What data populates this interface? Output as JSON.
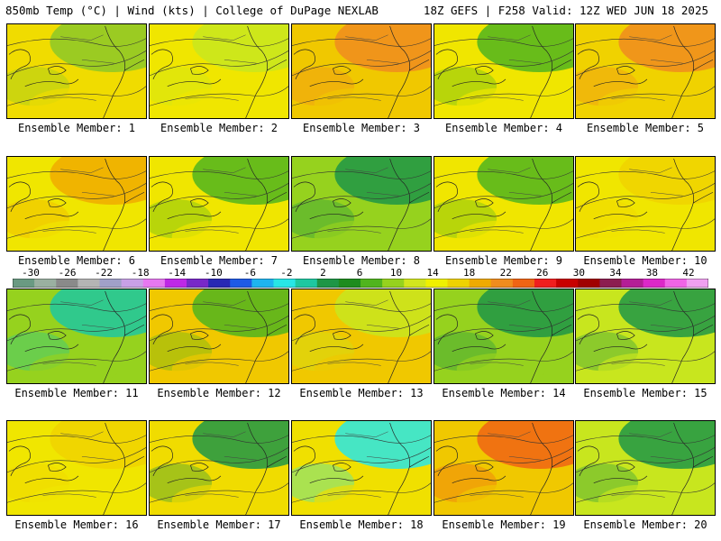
{
  "header": {
    "left": "850mb Temp (°C) | Wind (kts) | College of DuPage NEXLAB",
    "right": "18Z GEFS | F258 Valid: 12Z WED JUN 18 2025"
  },
  "colorbar": {
    "labels": [
      "-30",
      "-26",
      "-22",
      "-18",
      "-14",
      "-10",
      "-6",
      "-2",
      "2",
      "6",
      "10",
      "14",
      "18",
      "22",
      "26",
      "30",
      "34",
      "38",
      "42"
    ],
    "colors": [
      "#6a9a82",
      "#9ab0a0",
      "#8a8a8a",
      "#b4b4b4",
      "#a0a0c8",
      "#c8a0e6",
      "#e678f0",
      "#be28e6",
      "#7828c8",
      "#2828b4",
      "#1e5ae6",
      "#1eb4f0",
      "#28e6e6",
      "#1ec8a0",
      "#1e9646",
      "#1e8c1e",
      "#50b41e",
      "#96d21e",
      "#d2e61e",
      "#f0f000",
      "#f0d200",
      "#f0aa00",
      "#f08c1e",
      "#f06414",
      "#f01e1e",
      "#c80000",
      "#a00000",
      "#8c1e50",
      "#b41e96",
      "#dc28c8",
      "#f064e6",
      "#f0a0f0"
    ]
  },
  "panels": [
    {
      "label": "Ensemble Member: 1",
      "tint": "#8cc828",
      "base": "#f0dc00"
    },
    {
      "label": "Ensemble Member: 2",
      "tint": "#c8e61e",
      "base": "#f0e600"
    },
    {
      "label": "Ensemble Member: 3",
      "tint": "#f08c1e",
      "base": "#f0c800"
    },
    {
      "label": "Ensemble Member: 4",
      "tint": "#50b41e",
      "base": "#f0e600"
    },
    {
      "label": "Ensemble Member: 5",
      "tint": "#f08c1e",
      "base": "#f0d200"
    },
    {
      "label": "Ensemble Member: 6",
      "tint": "#f0aa00",
      "base": "#f0e600"
    },
    {
      "label": "Ensemble Member: 7",
      "tint": "#50b41e",
      "base": "#f0e600"
    },
    {
      "label": "Ensemble Member: 8",
      "tint": "#1e9646",
      "base": "#96d21e"
    },
    {
      "label": "Ensemble Member: 9",
      "tint": "#50b41e",
      "base": "#f0e600"
    },
    {
      "label": "Ensemble Member: 10",
      "tint": "#f0d200",
      "base": "#f0e600"
    },
    {
      "label": "Ensemble Member: 11",
      "tint": "#1ec8a0",
      "base": "#96d21e"
    },
    {
      "label": "Ensemble Member: 12",
      "tint": "#50b41e",
      "base": "#f0c800"
    },
    {
      "label": "Ensemble Member: 13",
      "tint": "#c8e61e",
      "base": "#f0c800"
    },
    {
      "label": "Ensemble Member: 14",
      "tint": "#1e9646",
      "base": "#96d21e"
    },
    {
      "label": "Ensemble Member: 15",
      "tint": "#1e9646",
      "base": "#c8e61e"
    },
    {
      "label": "Ensemble Member: 16",
      "tint": "#f0d200",
      "base": "#f0e600"
    },
    {
      "label": "Ensemble Member: 17",
      "tint": "#1e9646",
      "base": "#f0dc00"
    },
    {
      "label": "Ensemble Member: 18",
      "tint": "#28e6e6",
      "base": "#f0e000"
    },
    {
      "label": "Ensemble Member: 19",
      "tint": "#f06414",
      "base": "#f0c800"
    },
    {
      "label": "Ensemble Member: 20",
      "tint": "#1e9646",
      "base": "#c8e61e"
    }
  ]
}
